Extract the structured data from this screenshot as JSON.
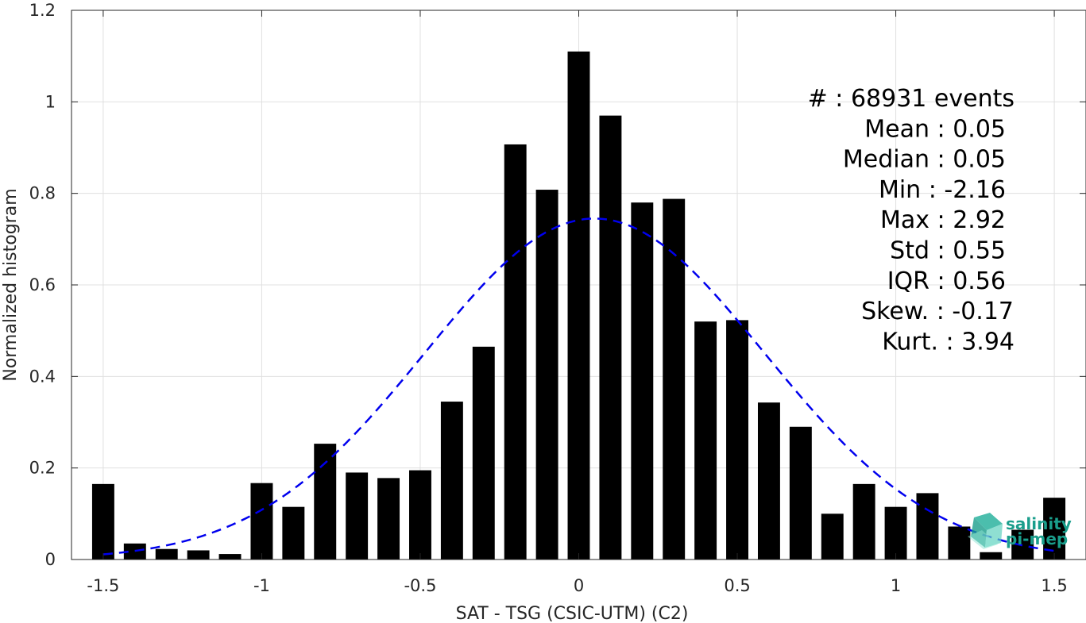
{
  "chart_data": {
    "type": "bar",
    "xlabel": "SAT - TSG (CSIC-UTM) (C2)",
    "ylabel": "Normalized histogram",
    "xlim": [
      -1.6,
      1.6
    ],
    "ylim": [
      0,
      1.2
    ],
    "xticks": [
      -1.5,
      -1,
      -0.5,
      0,
      0.5,
      1,
      1.5
    ],
    "xtick_labels": [
      "-1.5",
      "-1",
      "-0.5",
      "0",
      "0.5",
      "1",
      "1.5"
    ],
    "yticks": [
      0,
      0.2,
      0.4,
      0.6,
      0.8,
      1,
      1.2
    ],
    "ytick_labels": [
      "0",
      "0.2",
      "0.4",
      "0.6",
      "0.8",
      "1",
      "1.2"
    ],
    "grid": true,
    "bar_width": 0.07,
    "bar_color": "#000000",
    "x": [
      -1.5,
      -1.4,
      -1.3,
      -1.2,
      -1.1,
      -1.0,
      -0.9,
      -0.8,
      -0.7,
      -0.6,
      -0.5,
      -0.4,
      -0.3,
      -0.2,
      -0.1,
      0.0,
      0.1,
      0.2,
      0.3,
      0.4,
      0.5,
      0.6,
      0.7,
      0.8,
      0.9,
      1.0,
      1.1,
      1.2,
      1.3,
      1.4,
      1.5
    ],
    "values": [
      0.165,
      0.035,
      0.023,
      0.02,
      0.012,
      0.167,
      0.115,
      0.253,
      0.19,
      0.178,
      0.195,
      0.345,
      0.465,
      0.907,
      0.808,
      1.11,
      0.97,
      0.78,
      0.788,
      0.52,
      0.523,
      0.343,
      0.29,
      0.1,
      0.165,
      0.115,
      0.145,
      0.072,
      0.016,
      0.065,
      0.135
    ],
    "fit_curve": {
      "style": "dashed",
      "color": "#0000ee",
      "mean": 0.05,
      "std": 0.535,
      "peak": 0.745,
      "x_range": [
        -1.5,
        1.5
      ]
    },
    "annotations": [
      "#  : 68931 events",
      "Mean : 0.05",
      "Median : 0.05",
      "Min : -2.16",
      "Max : 2.92",
      "Std : 0.55",
      "IQR : 0.56",
      "Skew. : -0.17",
      "Kurt. : 3.94"
    ]
  },
  "logo": {
    "line1": "salinity",
    "line2": "pi-mep",
    "color": "#1a9e8c"
  }
}
